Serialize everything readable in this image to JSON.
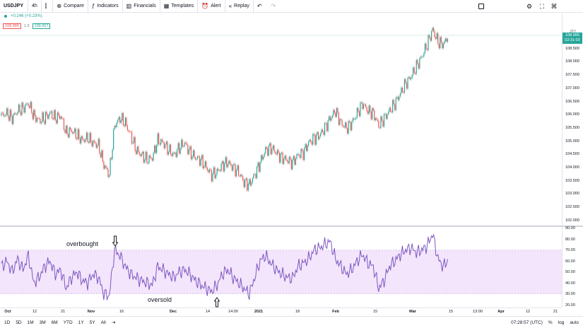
{
  "toolbar": {
    "symbol": "USDJPY",
    "interval": "4h",
    "compare": "Compare",
    "indicators": "Indicators",
    "financials": "Financials",
    "templates": "Templates",
    "alert": "Alert",
    "replay": "Replay"
  },
  "legend": {
    "change": "+0.246 (+0.23%)",
    "bid": "108.989",
    "spread": "1.3",
    "ask": "109.007"
  },
  "price_scale": {
    "currency": "JPY",
    "last_price": "108.995",
    "countdown": "02:31:03",
    "labels": [
      "109.000",
      "108.500",
      "108.000",
      "107.500",
      "107.000",
      "106.500",
      "106.000",
      "105.500",
      "105.000",
      "104.500",
      "104.000",
      "103.500",
      "103.000",
      "102.500",
      "102.000"
    ]
  },
  "rsi_scale": {
    "labels": [
      "90.00",
      "80.00",
      "70.00",
      "60.00",
      "50.00",
      "40.00",
      "30.00",
      "20.00"
    ]
  },
  "time_axis": {
    "labels": [
      "Oct",
      "12",
      "21",
      "Nov",
      "16",
      "Dec",
      "14",
      "14:00",
      "2021",
      "18",
      "Feb",
      "15",
      "Mar",
      "15",
      "13:00",
      "Apr",
      "12",
      "21"
    ],
    "bold": [
      "Oct",
      "Nov",
      "Dec",
      "2021",
      "Feb",
      "Mar",
      "Apr"
    ]
  },
  "annotations": {
    "overbought": "overbought",
    "oversold": "oversold"
  },
  "bottom": {
    "ranges": [
      "1D",
      "5D",
      "1M",
      "3M",
      "6M",
      "YTD",
      "1Y",
      "5Y",
      "All"
    ],
    "clock": "07:28:57 (UTC)",
    "percent": "%",
    "log": "log",
    "auto": "auto"
  },
  "colors": {
    "up": "#26a69a",
    "down": "#ef5350",
    "rsi_line": "#7e57c2",
    "rsi_band": "#f3e5fb"
  },
  "chart_data": {
    "type": "line",
    "series": [
      {
        "name": "USDJPY",
        "values": [
          105.6,
          105.7,
          105.5,
          105.8,
          105.9,
          106.1,
          105.6,
          105.4,
          105.5,
          105.7,
          105.5,
          105.6,
          104.9,
          105.0,
          104.8,
          104.6,
          104.7,
          104.5,
          104.4,
          103.6,
          103.2,
          105.2,
          105.5,
          105.3,
          104.8,
          104.2,
          104.0,
          103.8,
          103.9,
          104.6,
          104.5,
          104.2,
          104.0,
          104.3,
          104.5,
          104.1,
          103.9,
          103.8,
          103.5,
          103.2,
          103.3,
          103.6,
          103.7,
          103.5,
          103.3,
          102.9,
          102.8,
          103.2,
          103.7,
          104.2,
          104.3,
          104.1,
          103.9,
          103.8,
          103.7,
          104.0,
          104.1,
          104.5,
          104.7,
          104.8,
          105.1,
          105.5,
          105.8,
          105.3,
          105.1,
          105.3,
          105.7,
          106.1,
          105.8,
          105.7,
          105.2,
          105.5,
          105.8,
          106.1,
          106.5,
          106.9,
          107.2,
          107.6,
          108.0,
          108.5,
          109.1,
          108.6,
          108.5,
          108.9
        ]
      },
      {
        "name": "RSI",
        "values": [
          55,
          60,
          50,
          62,
          52,
          65,
          40,
          45,
          55,
          60,
          48,
          52,
          35,
          45,
          50,
          42,
          40,
          48,
          45,
          30,
          28,
          70,
          65,
          55,
          48,
          45,
          42,
          40,
          38,
          55,
          52,
          48,
          45,
          50,
          52,
          48,
          42,
          38,
          35,
          32,
          38,
          48,
          52,
          45,
          40,
          35,
          30,
          45,
          60,
          65,
          58,
          52,
          48,
          45,
          44,
          55,
          58,
          62,
          70,
          72,
          75,
          78,
          62,
          55,
          48,
          52,
          60,
          66,
          58,
          55,
          35,
          42,
          55,
          60,
          66,
          70,
          72,
          68,
          70,
          74,
          85,
          62,
          55,
          62
        ]
      }
    ],
    "ylim": [
      102.0,
      109.3
    ],
    "rsi_ylim": [
      20,
      90
    ],
    "rsi_band": [
      30,
      70
    ]
  }
}
